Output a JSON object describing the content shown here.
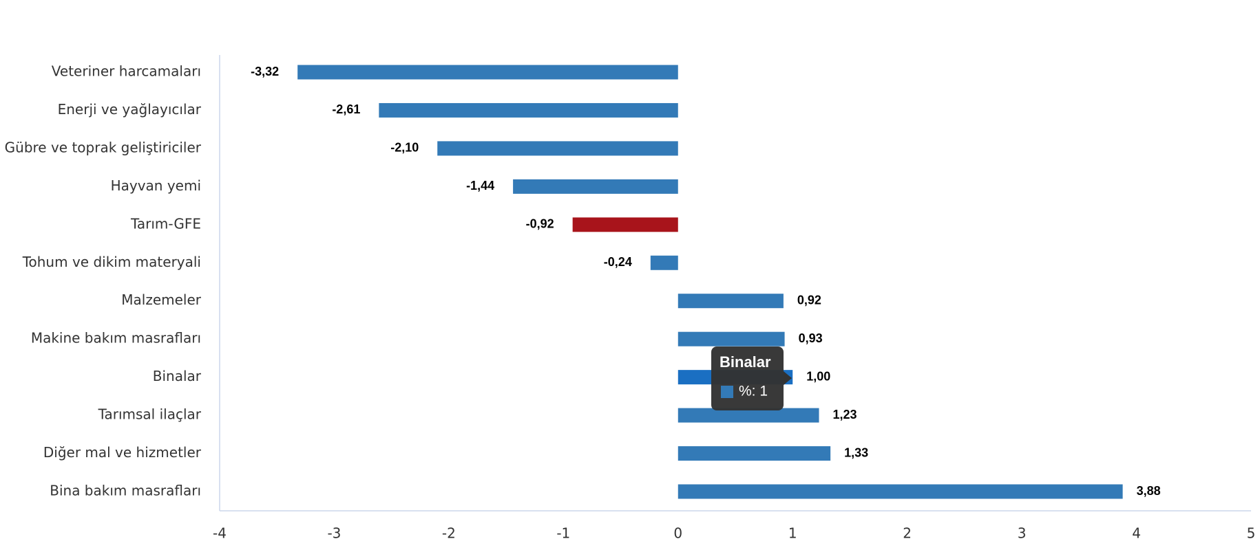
{
  "chart_data": {
    "type": "bar",
    "orientation": "horizontal",
    "categories": [
      "Veteriner harcamaları",
      "Enerji  ve yağlayıcılar",
      "Gübre ve toprak geliştiriciler",
      "Hayvan yemi",
      "Tarım-GFE",
      "Tohum ve dikim materyali",
      "Malzemeler",
      "Makine bakım masrafları",
      "Binalar",
      "Tarımsal ilaçlar",
      "Diğer mal ve hizmetler",
      "Bina bakım masrafları"
    ],
    "values": [
      -3.32,
      -2.61,
      -2.1,
      -1.44,
      -0.92,
      -0.24,
      0.92,
      0.93,
      1.0,
      1.23,
      1.33,
      3.88
    ],
    "value_labels": [
      "-3,32",
      "-2,61",
      "-2,10",
      "-1,44",
      "-0,92",
      "-0,24",
      "0,92",
      "0,93",
      "1,00",
      "1,23",
      "1,33",
      "3,88"
    ],
    "colors": [
      "#337ab7",
      "#337ab7",
      "#337ab7",
      "#337ab7",
      "#a8141b",
      "#337ab7",
      "#337ab7",
      "#337ab7",
      "#1a6fc2",
      "#337ab7",
      "#337ab7",
      "#337ab7"
    ],
    "xlim": [
      -4,
      5
    ],
    "xticks": [
      -4,
      -3,
      -2,
      -1,
      0,
      1,
      2,
      3,
      4,
      5
    ],
    "tooltip": {
      "title": "Binalar",
      "label": "%: 1"
    }
  }
}
